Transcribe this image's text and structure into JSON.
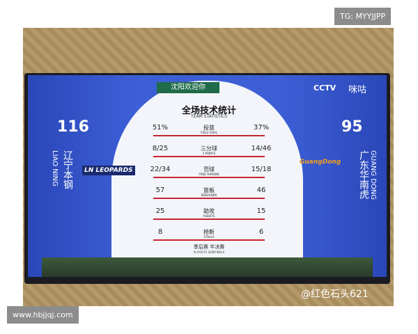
{
  "watermarks": {
    "top": "TG: MYYJJPP",
    "bottom": "www.hbjjqj.com",
    "weibo": "@红色石头621"
  },
  "broadcast": {
    "banner": "沈阳欢迎你",
    "channel": "CCTV",
    "platform": "咪咕"
  },
  "title": "全场技术统计",
  "subtitle": "TEAM STATISTICS",
  "teams": [
    {
      "score": 116,
      "name": "辽宁本钢",
      "name_en": "LIAO NING",
      "logo": "LN LEOPARDS"
    },
    {
      "score": 95,
      "name": "广东华南虎",
      "name_en": "GUANG DONG",
      "logo": "GuangDong"
    }
  ],
  "stats": [
    {
      "home": "51%",
      "label": "投篮",
      "label_en": "FIELD GOAL",
      "away": "37%"
    },
    {
      "home": "8/25",
      "label": "三分球",
      "label_en": "3 POINTS",
      "away": "14/46"
    },
    {
      "home": "22/34",
      "label": "罚球",
      "label_en": "FREE THROWS",
      "away": "15/18"
    },
    {
      "home": "57",
      "label": "篮板",
      "label_en": "REBOUNDS",
      "away": "46"
    },
    {
      "home": "25",
      "label": "助攻",
      "label_en": "ASSISTS",
      "away": "15"
    },
    {
      "home": "8",
      "label": "抢断",
      "label_en": "STEALS",
      "away": "6"
    }
  ],
  "footer": {
    "label": "季后赛 半决赛",
    "label_en": "PLAYOFFS SEMIFINALS"
  }
}
